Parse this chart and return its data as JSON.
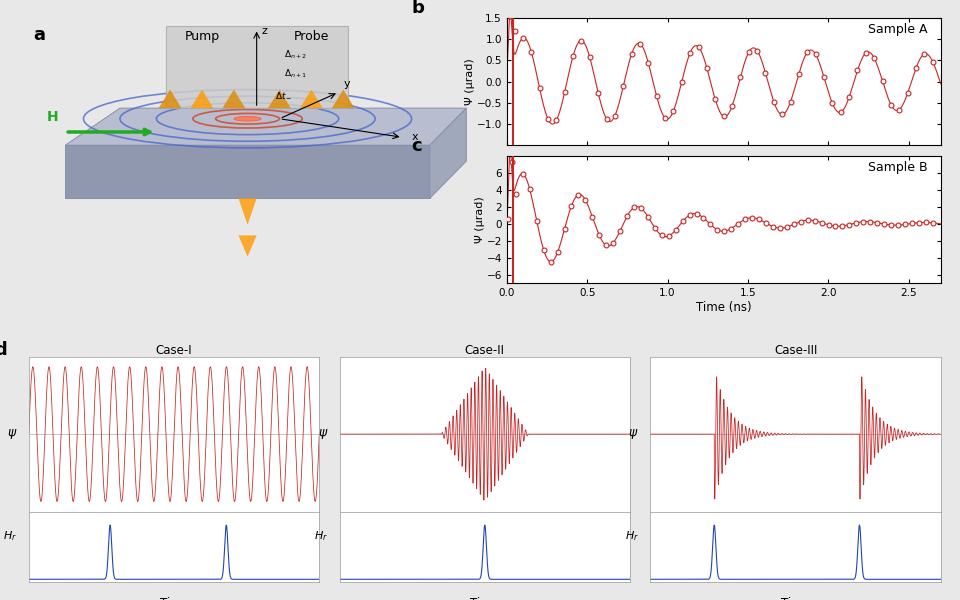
{
  "panel_b_label": "b",
  "panel_c_label": "c",
  "panel_d_label": "d",
  "sample_a_label": "Sample A",
  "sample_b_label": "Sample B",
  "case_labels": [
    "Case-I",
    "Case-II",
    "Case-III"
  ],
  "xlabel_bc": "Time (ns)",
  "ylabel_b": "Ψ (μrad)",
  "ylabel_c": "Ψ (μrad)",
  "xlim_bc": [
    0.0,
    2.7
  ],
  "ylim_b": [
    -1.5,
    1.5
  ],
  "ylim_c": [
    -7,
    8
  ],
  "yticks_b": [
    -1.0,
    -0.5,
    0.0,
    0.5,
    1.0,
    1.5
  ],
  "yticks_c": [
    -6,
    -4,
    -2,
    0,
    2,
    4,
    6
  ],
  "xticks_bc": [
    0.0,
    0.5,
    1.0,
    1.5,
    2.0,
    2.5
  ],
  "line_color": "#cc2222",
  "marker_color": "#cc2222",
  "blue_color": "#2244bb",
  "fig_bg": "#e8e8e8",
  "panel_bc_bg": "#f8f8f8",
  "case_bg": "#f5f5f5"
}
